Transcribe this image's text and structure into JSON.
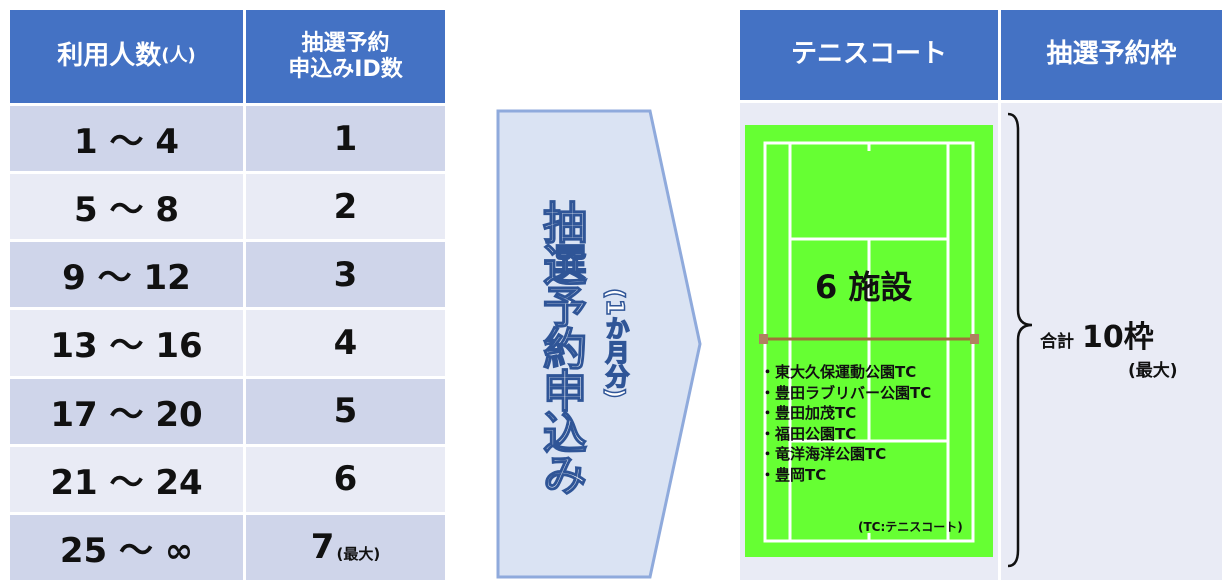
{
  "left_table": {
    "header": {
      "col1": "利用人数",
      "col1_unit": "(人)",
      "col2_line1": "抽選予約",
      "col2_line2": "申込みID数"
    },
    "rows": [
      [
        "1 ～ 4",
        "1"
      ],
      [
        "5 ～ 8",
        "2"
      ],
      [
        "9 ～ 12",
        "3"
      ],
      [
        "13 ～ 16",
        "4"
      ],
      [
        "17 ～ 20",
        "5"
      ],
      [
        "21 ～ 24",
        "6"
      ],
      [
        "25 ～ ∞",
        "7"
      ]
    ],
    "last_row_note": "(最大)"
  },
  "arrow": {
    "label": "抽選予約申込み",
    "sub_label": "(1か月分)"
  },
  "right_table": {
    "header": {
      "col1": "テニスコート",
      "col2": "抽選予約枠"
    },
    "facility_count": "6 施設",
    "facilities": [
      "・東大久保運動公園TC",
      "・豊田ラブリバー公園TC",
      "・豊田加茂TC",
      "・福田公園TC",
      "・竜洋海洋公園TC",
      "・豊岡TC"
    ],
    "facility_note": "(TC:テニスコート)",
    "total_prefix": "合計",
    "total": "10枠",
    "total_note": "(最大)"
  }
}
